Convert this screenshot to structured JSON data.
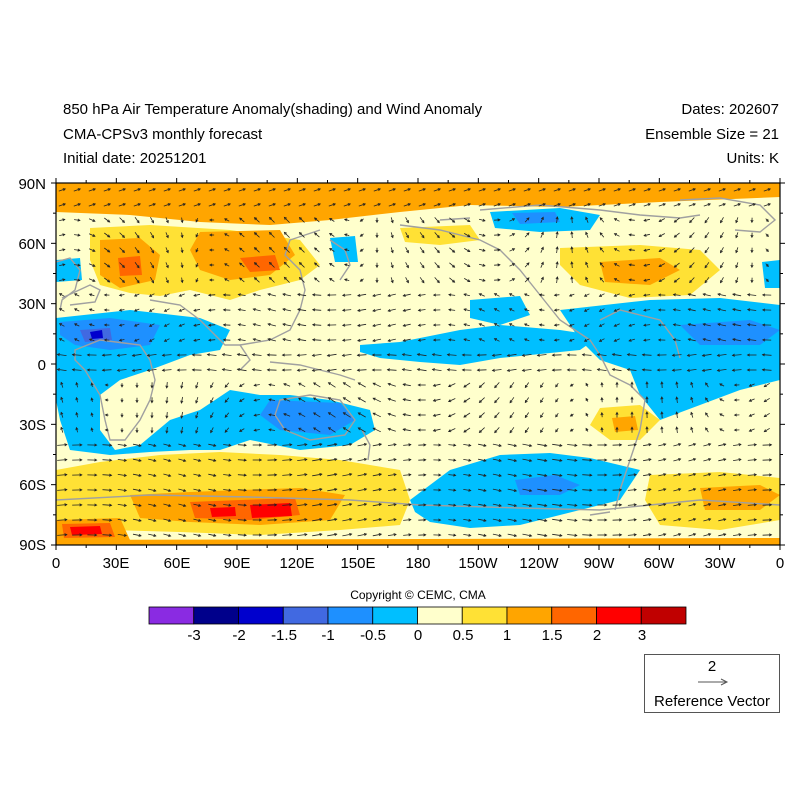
{
  "header": {
    "title": "850 hPa Air Temperature Anomaly(shading) and Wind Anomaly",
    "subtitle": "CMA-CPSv3 monthly forecast",
    "initial_date": "Initial date: 20251201",
    "dates": "Dates: 202607",
    "ensemble": "Ensemble Size = 21",
    "units": "Units: K"
  },
  "axes": {
    "lat_ticks": [
      "90N",
      "60N",
      "30N",
      "0",
      "30S",
      "60S",
      "90S"
    ],
    "lon_ticks": [
      "0",
      "30E",
      "60E",
      "90E",
      "120E",
      "150E",
      "180",
      "150W",
      "120W",
      "90W",
      "60W",
      "30W",
      "0"
    ]
  },
  "colorbar": {
    "labels": [
      "-3",
      "-2",
      "-1.5",
      "-1",
      "-0.5",
      "0",
      "0.5",
      "1",
      "1.5",
      "2",
      "3"
    ],
    "colors": [
      "#8a2be2",
      "#00008b",
      "#0000cd",
      "#4169e1",
      "#1e90ff",
      "#00bfff",
      "#ffffcc",
      "#ffe135",
      "#ffa500",
      "#ff6600",
      "#ff0000",
      "#c00000"
    ]
  },
  "copyright": "Copyright © CEMC, CMA",
  "reference": {
    "magnitude": "2",
    "label": "Reference Vector"
  },
  "colors": {
    "neutral": "#ffffcc",
    "coast": "#a0a0a0",
    "vector": "#222222"
  }
}
